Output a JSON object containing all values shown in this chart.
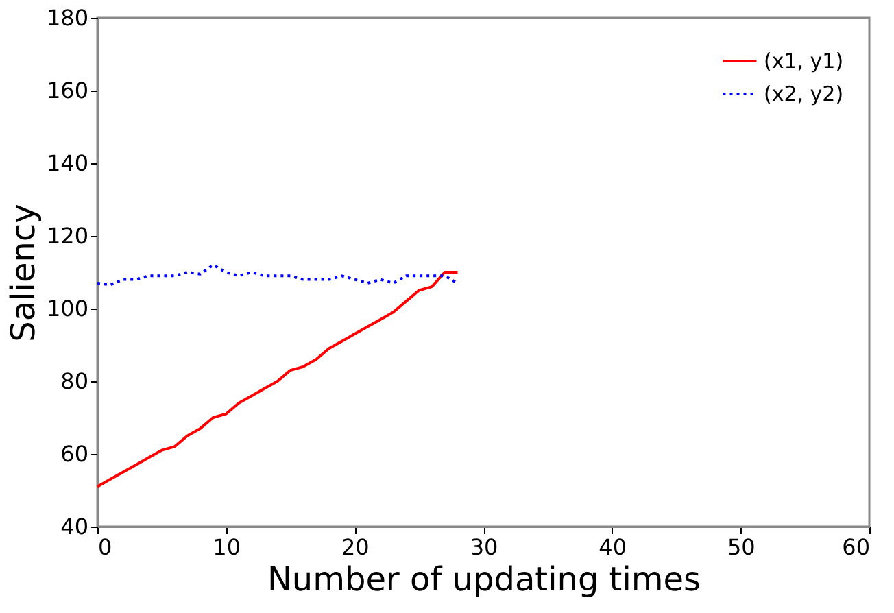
{
  "chart_data": {
    "type": "line",
    "xlabel": "Number of updating times",
    "ylabel": "Saliency",
    "x": [
      0,
      1,
      2,
      3,
      4,
      5,
      6,
      7,
      8,
      9,
      10,
      11,
      12,
      13,
      14,
      15,
      16,
      17,
      18,
      19,
      20,
      21,
      22,
      23,
      24,
      25,
      26,
      27,
      28
    ],
    "series": [
      {
        "name": "(x1, y1)",
        "color": "#ff0000",
        "line_style": "solid",
        "values": [
          51,
          53,
          55,
          57,
          59,
          61,
          62,
          65,
          67,
          70,
          71,
          74,
          76,
          78,
          80,
          83,
          84,
          86,
          89,
          91,
          93,
          95,
          97,
          99,
          102,
          105,
          106,
          110,
          110
        ]
      },
      {
        "name": "(x2, y2)",
        "color": "#0000ff",
        "line_style": "dotted",
        "values": [
          107,
          106.5,
          108,
          108,
          109,
          109,
          109,
          110,
          109.5,
          112,
          110,
          109,
          110,
          109,
          109,
          109,
          108,
          108,
          108,
          109,
          108,
          107,
          108,
          107,
          109,
          109,
          109,
          109,
          107
        ]
      }
    ],
    "xlim": [
      0,
      60
    ],
    "xticks": [
      0,
      10,
      20,
      30,
      40,
      50,
      60
    ],
    "ylim": [
      40,
      180
    ],
    "yticks": [
      40,
      60,
      80,
      100,
      120,
      140,
      160,
      180
    ],
    "grid": false,
    "legend": "top right",
    "marker": "none"
  }
}
